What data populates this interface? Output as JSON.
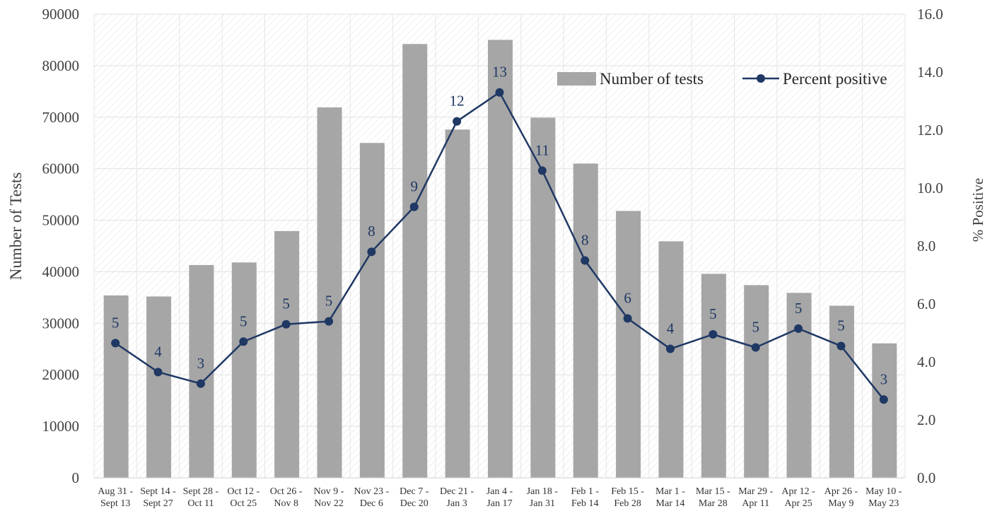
{
  "chart_data": {
    "type": "bar+line",
    "title": "",
    "categories": [
      [
        "Aug 31 -",
        "Sept 13"
      ],
      [
        "Sept 14 -",
        "Sept 27"
      ],
      [
        "Sept 28 -",
        "Oct 11"
      ],
      [
        "Oct 12 -",
        "Oct 25"
      ],
      [
        "Oct 26 -",
        "Nov 8"
      ],
      [
        "Nov 9 -",
        "Nov 22"
      ],
      [
        "Nov 23 -",
        "Dec 6"
      ],
      [
        "Dec 7 -",
        "Dec 20"
      ],
      [
        "Dec 21 -",
        "Jan 3"
      ],
      [
        "Jan 4 -",
        "Jan 17"
      ],
      [
        "Jan 18 -",
        "Jan 31"
      ],
      [
        "Feb 1 -",
        "Feb 14"
      ],
      [
        "Feb 15 -",
        "Feb 28"
      ],
      [
        "Mar 1 -",
        "Mar 14"
      ],
      [
        "Mar 15 -",
        "Mar 28"
      ],
      [
        "Mar 29 -",
        "Apr 11"
      ],
      [
        "Apr 12 -",
        "Apr 25"
      ],
      [
        "Apr 26 -",
        "May 9"
      ],
      [
        "May 10 -",
        "May 23"
      ]
    ],
    "series": [
      {
        "name": "Number of tests",
        "kind": "bar",
        "axis": "left",
        "color": "#a6a6a6",
        "values": [
          35400,
          35200,
          41300,
          41800,
          47900,
          71900,
          65000,
          84200,
          67600,
          85000,
          69900,
          61000,
          51800,
          45900,
          39600,
          37400,
          35900,
          33400,
          26100
        ]
      },
      {
        "name": "Percent positive",
        "kind": "line",
        "axis": "right",
        "color": "#1f3864",
        "values": [
          4.65,
          3.65,
          3.25,
          4.7,
          5.3,
          5.4,
          7.8,
          9.35,
          12.3,
          13.3,
          10.6,
          7.5,
          5.5,
          4.45,
          4.95,
          4.5,
          5.15,
          4.55,
          2.7
        ],
        "labels": [
          "5",
          "4",
          "3",
          "5",
          "5",
          "5",
          "8",
          "9",
          "12",
          "13",
          "11",
          "8",
          "6",
          "4",
          "5",
          "5",
          "5",
          "5",
          "3"
        ]
      }
    ],
    "left_axis": {
      "label": "Number of Tests",
      "min": 0,
      "max": 90000,
      "ticks": [
        "0",
        "10000",
        "20000",
        "30000",
        "40000",
        "50000",
        "60000",
        "70000",
        "80000",
        "90000"
      ]
    },
    "right_axis": {
      "label": "% Positive",
      "min": 0,
      "max": 16,
      "ticks": [
        "0.0",
        "2.0",
        "4.0",
        "6.0",
        "8.0",
        "10.0",
        "12.0",
        "14.0",
        "16.0"
      ]
    },
    "legend": {
      "position": "top-right",
      "entries": [
        "Number of tests",
        "Percent positive"
      ]
    },
    "grid": true
  }
}
